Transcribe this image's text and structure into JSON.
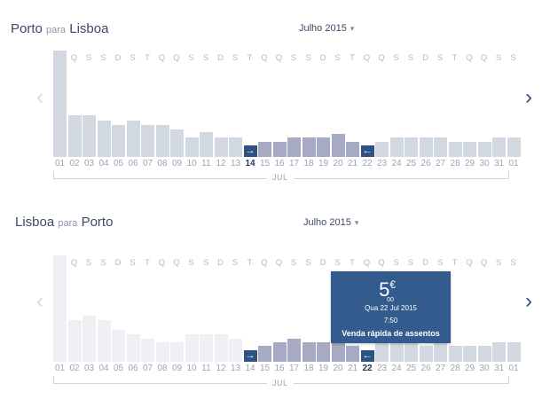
{
  "colors": {
    "bar_grey": "#d2d8df",
    "bar_grey_faded": "#eef0f3",
    "bar_selected_range": "#a6abc3",
    "bar_dark": "#2f5284",
    "arrow_active": "#2e4f80",
    "tooltip_bg": "#335b8e"
  },
  "icons": {
    "prev": "chevron-left-icon",
    "next": "chevron-right-icon",
    "outbound_marker": "arrow-right-icon",
    "return_marker": "arrow-left-icon",
    "month_dropdown": "caret-down-icon"
  },
  "calendar": {
    "weekdays": [
      "Q",
      "Q",
      "S",
      "S",
      "D",
      "S",
      "T",
      "Q",
      "Q",
      "S",
      "S",
      "D",
      "S",
      "T",
      "Q",
      "Q",
      "S",
      "S",
      "D",
      "S",
      "T",
      "Q",
      "Q",
      "S",
      "S",
      "D",
      "S",
      "T",
      "Q",
      "Q",
      "S",
      "S"
    ],
    "dates": [
      "01",
      "02",
      "03",
      "04",
      "05",
      "06",
      "07",
      "08",
      "09",
      "10",
      "11",
      "12",
      "13",
      "14",
      "15",
      "16",
      "17",
      "18",
      "19",
      "20",
      "21",
      "22",
      "23",
      "24",
      "25",
      "26",
      "27",
      "28",
      "29",
      "30",
      "31",
      "01"
    ],
    "month_label": "JUL",
    "outbound_marker_glyph": "→",
    "return_marker_glyph": "←"
  },
  "outbound": {
    "origin": "Porto",
    "connector": "para",
    "destination": "Lisboa",
    "month_selector": "Julho 2015",
    "caret": "▾",
    "prev_arrow": "‹",
    "next_arrow": "›",
    "selected_date": "14",
    "price_levels": [
      1.0,
      0.39,
      0.39,
      0.34,
      0.3,
      0.34,
      0.3,
      0.3,
      0.26,
      0.18,
      0.23,
      0.18,
      0.18,
      0.15,
      0.14,
      0.14,
      0.18,
      0.18,
      0.18,
      0.22,
      0.14,
      0.14,
      0.14,
      0.18,
      0.18,
      0.18,
      0.18,
      0.14,
      0.14,
      0.14,
      0.18,
      0.18
    ],
    "bar_states": [
      "default",
      "default",
      "default",
      "default",
      "default",
      "default",
      "default",
      "default",
      "default",
      "default",
      "default",
      "default",
      "default",
      "selected",
      "range",
      "range",
      "range",
      "range",
      "range",
      "range",
      "range",
      "return",
      "default",
      "default",
      "default",
      "default",
      "default",
      "default",
      "default",
      "default",
      "default",
      "default"
    ]
  },
  "return_trip": {
    "origin": "Lisboa",
    "connector": "para",
    "destination": "Porto",
    "month_selector": "Julho 2015",
    "caret": "▾",
    "prev_arrow": "‹",
    "next_arrow": "›",
    "selected_date": "22",
    "price_levels": [
      1.0,
      0.39,
      0.43,
      0.39,
      0.3,
      0.26,
      0.22,
      0.18,
      0.18,
      0.26,
      0.26,
      0.26,
      0.22,
      0.15,
      0.15,
      0.18,
      0.22,
      0.18,
      0.18,
      0.18,
      0.15,
      0.15,
      0.18,
      0.18,
      0.18,
      0.15,
      0.18,
      0.15,
      0.15,
      0.15,
      0.18,
      0.18
    ],
    "bar_states": [
      "faded",
      "faded",
      "faded",
      "faded",
      "faded",
      "faded",
      "faded",
      "faded",
      "faded",
      "faded",
      "faded",
      "faded",
      "faded",
      "outbound",
      "range",
      "range",
      "range",
      "range",
      "range",
      "range",
      "range",
      "selected",
      "default",
      "default",
      "default",
      "default",
      "default",
      "default",
      "default",
      "default",
      "default",
      "default"
    ]
  },
  "tooltip": {
    "price_integer": "5",
    "currency": "€",
    "price_decimals": "00",
    "date": "Qua 22 Jul 2015",
    "time": "7:50",
    "fare_name": "Venda rápida de assentos"
  }
}
